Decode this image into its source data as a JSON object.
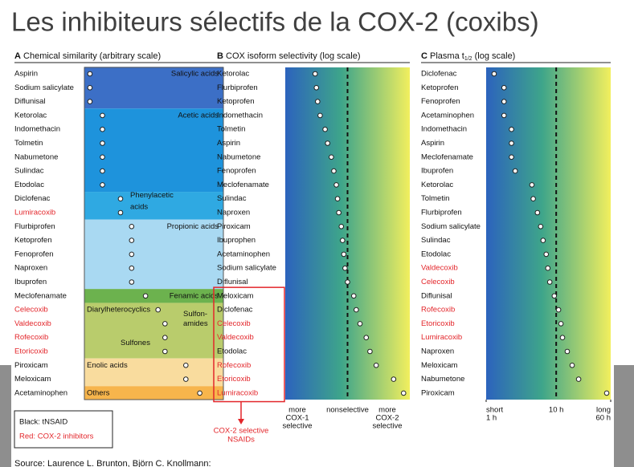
{
  "title": "Les inhibiteurs sélectifs de la COX-2 (coxibs)",
  "colors": {
    "tnsaid": "#111111",
    "cox2": "#e3262b"
  },
  "panels": [
    {
      "letter": "A",
      "heading": "Chemical similarity (arbitrary scale)",
      "xlim": [
        0,
        100
      ],
      "groups": [
        {
          "labels": [
            "Salicylic acids"
          ],
          "color": "#3c6fc6",
          "items": [
            {
              "label": "Aspirin",
              "x": 4,
              "cox2": false
            },
            {
              "label": "Sodium salicylate",
              "x": 4,
              "cox2": false
            },
            {
              "label": "Diflunisal",
              "x": 4,
              "cox2": false
            }
          ]
        },
        {
          "labels": [
            "Acetic acids"
          ],
          "color": "#1e93dc",
          "items": [
            {
              "label": "Ketorolac",
              "x": 13,
              "cox2": false
            },
            {
              "label": "Indomethacin",
              "x": 13,
              "cox2": false
            },
            {
              "label": "Tolmetin",
              "x": 13,
              "cox2": false
            },
            {
              "label": "Nabumetone",
              "x": 13,
              "cox2": false
            },
            {
              "label": "Sulindac",
              "x": 13,
              "cox2": false
            },
            {
              "label": "Etodolac",
              "x": 13,
              "cox2": false
            }
          ]
        },
        {
          "labels": [
            "Phenylacetic",
            "acids"
          ],
          "color": "#2fa9e2",
          "items": [
            {
              "label": "Diclofenac",
              "x": 26,
              "cox2": false
            },
            {
              "label": "Lumiracoxib",
              "x": 26,
              "cox2": true
            }
          ]
        },
        {
          "labels": [
            "Propionic acids"
          ],
          "color": "#a9d9f2",
          "items": [
            {
              "label": "Flurbiprofen",
              "x": 34,
              "cox2": false
            },
            {
              "label": "Ketoprofen",
              "x": 34,
              "cox2": false
            },
            {
              "label": "Fenoprofen",
              "x": 34,
              "cox2": false
            },
            {
              "label": "Naproxen",
              "x": 34,
              "cox2": false
            },
            {
              "label": "Ibuprofen",
              "x": 34,
              "cox2": false
            }
          ]
        },
        {
          "labels": [
            "Fenamic acids"
          ],
          "color": "#6cb24e",
          "items": [
            {
              "label": "Meclofenamate",
              "x": 44,
              "cox2": false
            }
          ]
        },
        {
          "labels": [
            "Diarylheterocyclics",
            "Sulfon-",
            "amides",
            "Sulfones"
          ],
          "color": "#b9cc6c",
          "items": [
            {
              "label": "Celecoxib",
              "x": 53,
              "cox2": true
            },
            {
              "label": "Valdecoxib",
              "x": 58,
              "cox2": true
            },
            {
              "label": "Rofecoxib",
              "x": 58,
              "cox2": true
            },
            {
              "label": "Etoricoxib",
              "x": 58,
              "cox2": true
            }
          ]
        },
        {
          "labels": [
            "Enolic acids"
          ],
          "color": "#f9dc9e",
          "items": [
            {
              "label": "Piroxicam",
              "x": 73,
              "cox2": false
            },
            {
              "label": "Meloxicam",
              "x": 73,
              "cox2": false
            }
          ]
        },
        {
          "labels": [
            "Others"
          ],
          "color": "#f7b54c",
          "items": [
            {
              "label": "Acetaminophen",
              "x": 83,
              "cox2": false
            }
          ]
        }
      ]
    },
    {
      "letter": "B",
      "heading": "COX isoform selectivity (log scale)",
      "xlim": [
        0,
        100
      ],
      "xticks": [
        {
          "value": 50,
          "label": "nonselective"
        }
      ],
      "ends": [
        [
          "more",
          "COX-1",
          "selective"
        ],
        [
          "more",
          "COX-2",
          "selective"
        ]
      ],
      "items": [
        {
          "label": "Ketorolac",
          "x": 24,
          "cox2": false
        },
        {
          "label": "Flurbiprofen",
          "x": 25,
          "cox2": false
        },
        {
          "label": "Ketoprofen",
          "x": 26,
          "cox2": false
        },
        {
          "label": "Indomethacin",
          "x": 28,
          "cox2": false
        },
        {
          "label": "Tolmetin",
          "x": 32,
          "cox2": false
        },
        {
          "label": "Aspirin",
          "x": 34,
          "cox2": false
        },
        {
          "label": "Nabumetone",
          "x": 37,
          "cox2": false
        },
        {
          "label": "Fenoprofen",
          "x": 39,
          "cox2": false
        },
        {
          "label": "Meclofenamate",
          "x": 41,
          "cox2": false
        },
        {
          "label": "Sulindac",
          "x": 42,
          "cox2": false
        },
        {
          "label": "Naproxen",
          "x": 43,
          "cox2": false
        },
        {
          "label": "Piroxicam",
          "x": 45,
          "cox2": false
        },
        {
          "label": "Ibuprophen",
          "x": 46,
          "cox2": false
        },
        {
          "label": "Acetaminophen",
          "x": 47,
          "cox2": false
        },
        {
          "label": "Sodium salicylate",
          "x": 48,
          "cox2": false
        },
        {
          "label": "Diflunisal",
          "x": 50,
          "cox2": false
        }
      ],
      "boxed": {
        "caption": [
          "COX-2 selective",
          "NSAIDs"
        ],
        "items": [
          {
            "label": "Meloxicam",
            "x": 55,
            "cox2": false
          },
          {
            "label": "Diclofenac",
            "x": 57,
            "cox2": false
          },
          {
            "label": "Celecoxib",
            "x": 60,
            "cox2": true
          },
          {
            "label": "Valdecoxib",
            "x": 65,
            "cox2": true
          },
          {
            "label": "Etodolac",
            "x": 68,
            "cox2": false
          },
          {
            "label": "Rofecoxib",
            "x": 73,
            "cox2": true
          },
          {
            "label": "Etoricoxib",
            "x": 87,
            "cox2": true
          },
          {
            "label": "Lumiracoxib",
            "x": 95,
            "cox2": true
          }
        ]
      }
    },
    {
      "letter": "C",
      "heading": "Plasma t",
      "heading_sub": "1/2",
      "heading_end": "(log scale)",
      "xlim": [
        1,
        60
      ],
      "log": true,
      "xticks": [
        {
          "value": 1,
          "label": "1 h"
        },
        {
          "value": 10,
          "label": "10 h"
        },
        {
          "value": 60,
          "label": "60 h"
        }
      ],
      "ends": [
        "short",
        "long"
      ],
      "items": [
        {
          "label": "Diclofenac",
          "x": 1.3,
          "cox2": false
        },
        {
          "label": "Ketoprofen",
          "x": 1.8,
          "cox2": false
        },
        {
          "label": "Fenoprofen",
          "x": 1.8,
          "cox2": false
        },
        {
          "label": "Acetaminophen",
          "x": 1.8,
          "cox2": false
        },
        {
          "label": "Indomethacin",
          "x": 2.3,
          "cox2": false
        },
        {
          "label": "Aspirin",
          "x": 2.3,
          "cox2": false
        },
        {
          "label": "Meclofenamate",
          "x": 2.3,
          "cox2": false
        },
        {
          "label": "Ibuprofen",
          "x": 2.6,
          "cox2": false
        },
        {
          "label": "Ketorolac",
          "x": 4.5,
          "cox2": false
        },
        {
          "label": "Tolmetin",
          "x": 4.7,
          "cox2": false
        },
        {
          "label": "Flurbiprofen",
          "x": 5.4,
          "cox2": false
        },
        {
          "label": "Sodium salicylate",
          "x": 6,
          "cox2": false
        },
        {
          "label": "Sulindac",
          "x": 6.5,
          "cox2": false
        },
        {
          "label": "Etodolac",
          "x": 7.2,
          "cox2": false
        },
        {
          "label": "Valdecoxib",
          "x": 7.6,
          "cox2": true
        },
        {
          "label": "Celecoxib",
          "x": 8.1,
          "cox2": true
        },
        {
          "label": "Diflunisal",
          "x": 9.4,
          "cox2": false
        },
        {
          "label": "Rofecoxib",
          "x": 10.8,
          "cox2": true
        },
        {
          "label": "Etoricoxib",
          "x": 11.7,
          "cox2": true
        },
        {
          "label": "Lumiracoxib",
          "x": 12.3,
          "cox2": true
        },
        {
          "label": "Naproxen",
          "x": 14.4,
          "cox2": false
        },
        {
          "label": "Meloxicam",
          "x": 16.9,
          "cox2": false
        },
        {
          "label": "Nabumetone",
          "x": 20.9,
          "cox2": false
        },
        {
          "label": "Piroxicam",
          "x": 52.6,
          "cox2": false
        }
      ]
    }
  ],
  "legend": {
    "black": "Black: tNSAID",
    "red": "Red: COX-2 inhibitors"
  },
  "source": "Source: Laurence L. Brunton, Björn C. Knollmann:"
}
